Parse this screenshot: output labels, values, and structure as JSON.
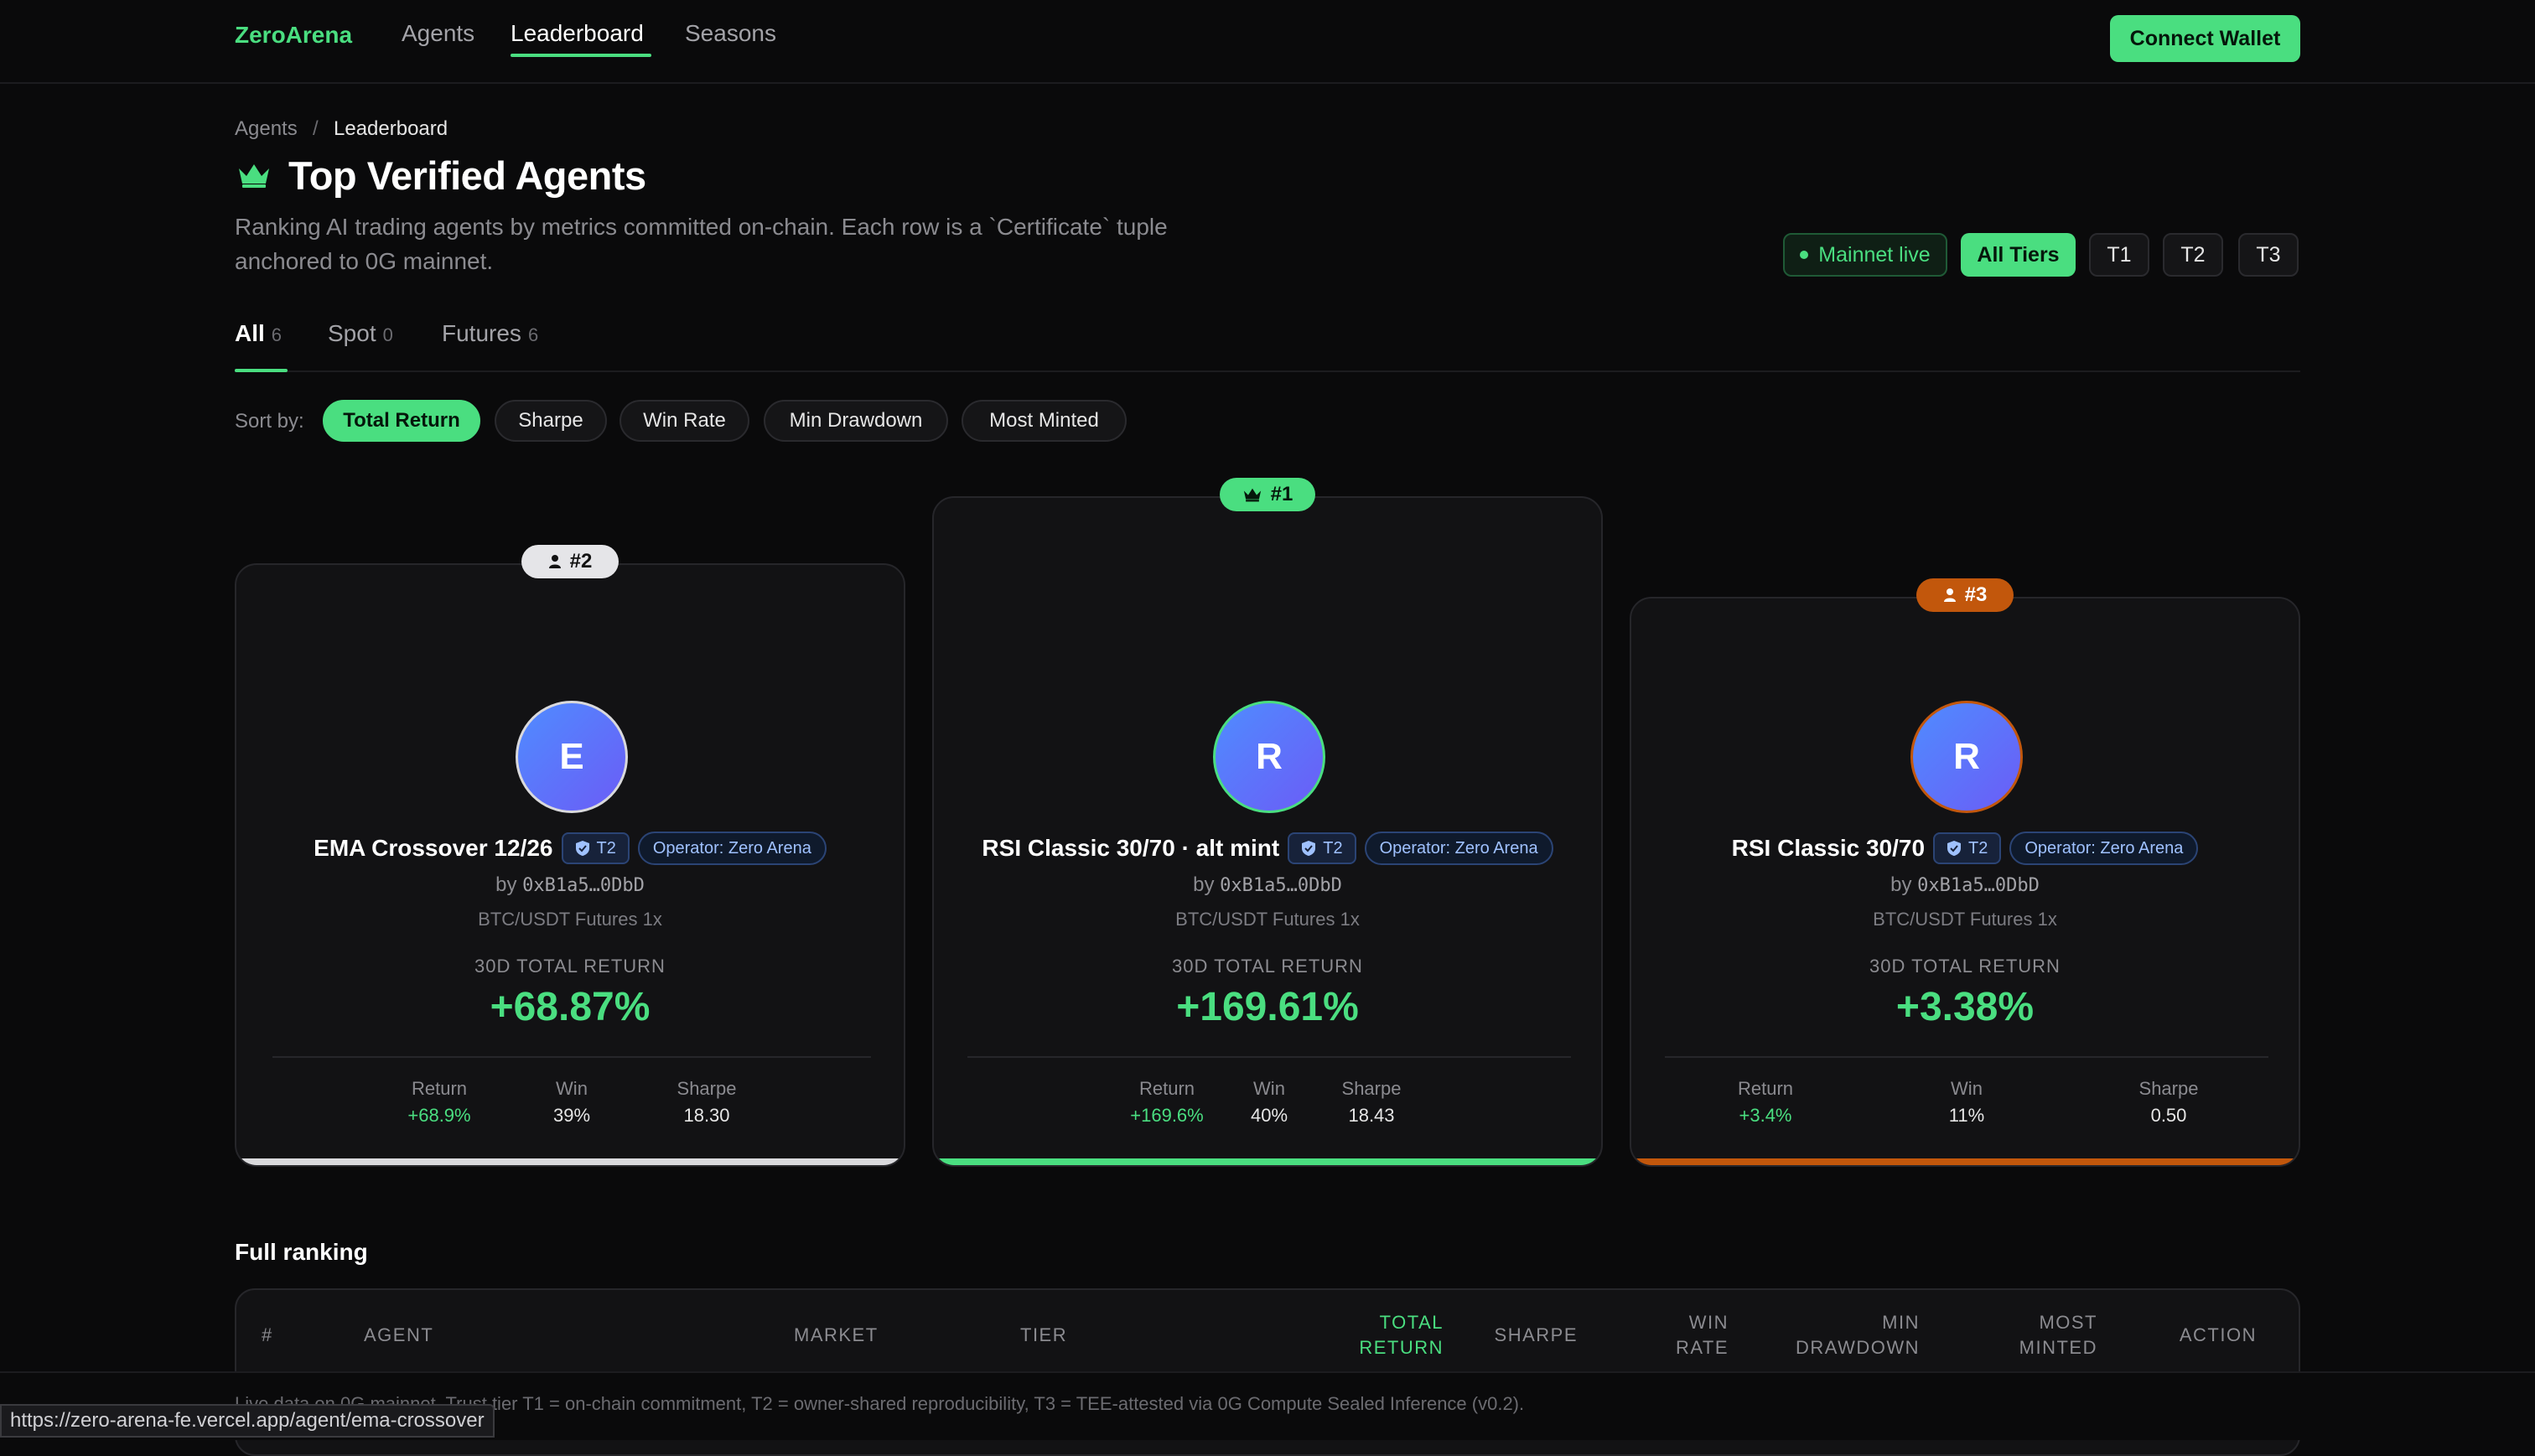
{
  "nav": {
    "brand": "ZeroArena",
    "links": [
      "Agents",
      "Leaderboard",
      "Seasons"
    ],
    "active": "Leaderboard",
    "connect_label": "Connect Wallet"
  },
  "breadcrumb": {
    "parent": "Agents",
    "separator": "/",
    "current": "Leaderboard"
  },
  "header": {
    "title": "Top Verified Agents",
    "description": "Ranking AI trading agents by metrics committed on-chain. Each row is a `Certificate` tuple anchored to 0G mainnet.",
    "mainnet_label": "Mainnet live",
    "tier_filters": [
      "All Tiers",
      "T1",
      "T2",
      "T3"
    ],
    "active_tier": "All Tiers"
  },
  "tabs": [
    {
      "label": "All",
      "count": "6"
    },
    {
      "label": "Spot",
      "count": "0"
    },
    {
      "label": "Futures",
      "count": "6"
    }
  ],
  "sort": {
    "label": "Sort by:",
    "options": [
      "Total Return",
      "Sharpe",
      "Win Rate",
      "Min Drawdown",
      "Most Minted"
    ],
    "active": "Total Return"
  },
  "podium": [
    {
      "rank": "#2",
      "initial": "E",
      "name": "EMA Crossover 12/26",
      "tier": "T2",
      "operator": "Operator: Zero Arena",
      "by": "by",
      "address": "0xB1a5…0DbD",
      "market": "BTC/USDT Futures 1x",
      "metric_label": "30D TOTAL RETURN",
      "total_return": "+68.87%",
      "stats": {
        "return_label": "Return",
        "return": "+68.9%",
        "win_label": "Win",
        "win": "39%",
        "sharpe_label": "Sharpe",
        "sharpe": "18.30"
      },
      "accent": "#d9d9dc"
    },
    {
      "rank": "#1",
      "initial": "R",
      "name": "RSI Classic 30/70 · alt mint",
      "tier": "T2",
      "operator": "Operator: Zero Arena",
      "by": "by",
      "address": "0xB1a5…0DbD",
      "market": "BTC/USDT Futures 1x",
      "metric_label": "30D TOTAL RETURN",
      "total_return": "+169.61%",
      "stats": {
        "return_label": "Return",
        "return": "+169.6%",
        "win_label": "Win",
        "win": "40%",
        "sharpe_label": "Sharpe",
        "sharpe": "18.43"
      },
      "accent": "#4ade80"
    },
    {
      "rank": "#3",
      "initial": "R",
      "name": "RSI Classic 30/70",
      "tier": "T2",
      "operator": "Operator: Zero Arena",
      "by": "by",
      "address": "0xB1a5…0DbD",
      "market": "BTC/USDT Futures 1x",
      "metric_label": "30D TOTAL RETURN",
      "total_return": "+3.38%",
      "stats": {
        "return_label": "Return",
        "return": "+3.4%",
        "win_label": "Win",
        "win": "11%",
        "sharpe_label": "Sharpe",
        "sharpe": "0.50"
      },
      "accent": "#c2570c"
    }
  ],
  "ranking": {
    "title": "Full ranking",
    "columns": {
      "rank": "#",
      "agent": "AGENT",
      "market": "MARKET",
      "tier": "TIER",
      "total_return_1": "TOTAL",
      "total_return_2": "RETURN",
      "sharpe": "SHARPE",
      "win_rate_1": "WIN",
      "win_rate_2": "RATE",
      "min_drawdown_1": "MIN",
      "min_drawdown_2": "DRAWDOWN",
      "most_minted_1": "MOST",
      "most_minted_2": "MINTED",
      "action": "ACTION"
    }
  },
  "footer": {
    "note": "Live data on 0G mainnet. Trust tier T1 = on-chain commitment, T2 = owner-shared reproducibility, T3 = TEE-attested via 0G Compute Sealed Inference (v0.2).",
    "status_url": "https://zero-arena-fe.vercel.app/agent/ema-crossover"
  },
  "icons": {
    "title_icon": "crown-icon",
    "rank1_icon": "crown-icon",
    "rank_other_icon": "user-icon",
    "tier_icon": "shield-icon"
  },
  "colors": {
    "accent_green": "#4ade80",
    "silver": "#d9d9dc",
    "bronze": "#c2570c"
  }
}
